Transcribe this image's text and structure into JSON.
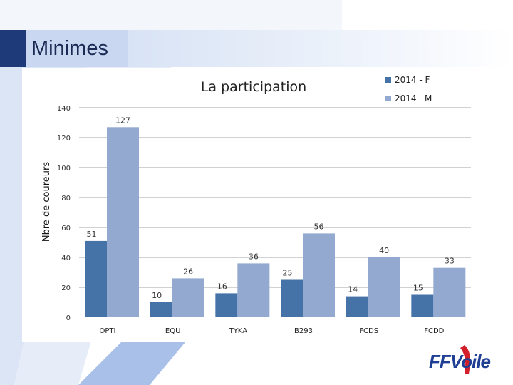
{
  "slide": {
    "title": "Minimes"
  },
  "logo": {
    "text": "FFVoile"
  },
  "chart_data": {
    "type": "bar",
    "title": "La participation",
    "xlabel": "",
    "ylabel": "Nbre de coureurs",
    "categories": [
      "OPTI",
      "EQU",
      "TYKA",
      "B293",
      "FCDS",
      "FCDD"
    ],
    "series": [
      {
        "name": "2014 - F",
        "values": [
          51,
          10,
          16,
          25,
          14,
          15
        ],
        "color": "#4572a7"
      },
      {
        "name": "2014   M",
        "values": [
          127,
          26,
          36,
          56,
          40,
          33
        ],
        "color": "#93a9d0"
      }
    ],
    "ylim": [
      0,
      140
    ],
    "yticks": [
      0,
      20,
      40,
      60,
      80,
      100,
      120,
      140
    ],
    "grid": true,
    "legend": "top-right"
  }
}
